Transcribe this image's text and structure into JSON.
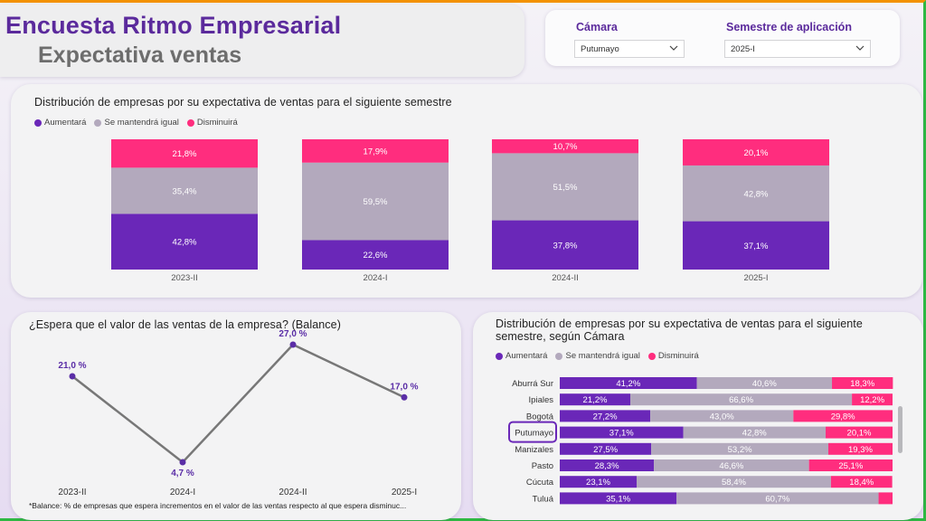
{
  "header": {
    "title": "Encuesta Ritmo Empresarial",
    "subtitle": "Expectativa ventas"
  },
  "filters": {
    "camara_label": "Cámara",
    "camara_value": "Putumayo",
    "semestre_label": "Semestre de aplicación",
    "semestre_value": "2025-I"
  },
  "colors": {
    "aumentara": "#6a27b8",
    "igual": "#b3a9bd",
    "disminuira": "#ff2d7e",
    "line": "#777777",
    "point": "#5a2da6"
  },
  "legend": {
    "aumentara": "Aumentará",
    "igual": "Se mantendrá igual",
    "disminuira": "Disminuirá"
  },
  "top_chart": {
    "title": "Distribución de empresas por su expectativa de ventas para el siguiente semestre"
  },
  "line_chart": {
    "title": "¿Espera que el valor de las ventas de la empresa? (Balance)",
    "footnote": "*Balance: % de empresas que espera incrementos en el valor de las ventas respecto al que espera disminuc..."
  },
  "bars_chart": {
    "title_line1": "Distribución de empresas por su expectativa de ventas para el siguiente",
    "title_line2": "semestre, según Cámara",
    "highlight": "Putumayo"
  },
  "chart_data": [
    {
      "type": "bar",
      "stacked": true,
      "categories": [
        "2023-II",
        "2024-I",
        "2024-II",
        "2025-I"
      ],
      "series": [
        {
          "name": "Aumentará",
          "values": [
            42.8,
            22.6,
            37.8,
            37.1
          ],
          "labels": [
            "42,8%",
            "22,6%",
            "37,8%",
            "37,1%"
          ]
        },
        {
          "name": "Se mantendrá igual",
          "values": [
            35.4,
            59.5,
            51.5,
            42.8
          ],
          "labels": [
            "35,4%",
            "59,5%",
            "51,5%",
            "42,8%"
          ]
        },
        {
          "name": "Disminuirá",
          "values": [
            21.8,
            17.9,
            10.7,
            20.1
          ],
          "labels": [
            "21,8%",
            "17,9%",
            "10,7%",
            "20,1%"
          ]
        }
      ]
    },
    {
      "type": "line",
      "x": [
        "2023-II",
        "2024-I",
        "2024-II",
        "2025-I"
      ],
      "y": [
        21.0,
        4.7,
        27.0,
        17.0
      ],
      "labels": [
        "21,0 %",
        "4,7 %",
        "27,0 %",
        "17,0 %"
      ]
    },
    {
      "type": "bar",
      "orientation": "horizontal",
      "stacked": true,
      "categories": [
        "Aburrá Sur",
        "Ipiales",
        "Bogotá",
        "Putumayo",
        "Manizales",
        "Pasto",
        "Cúcuta",
        "Tuluá"
      ],
      "series": [
        {
          "name": "Aumentará",
          "values": [
            41.2,
            21.2,
            27.2,
            37.1,
            27.5,
            28.3,
            23.1,
            35.1
          ],
          "labels": [
            "41,2%",
            "21,2%",
            "27,2%",
            "37,1%",
            "27,5%",
            "28,3%",
            "23,1%",
            "35,1%"
          ]
        },
        {
          "name": "Se mantendrá igual",
          "values": [
            40.6,
            66.6,
            43.0,
            42.8,
            53.2,
            46.6,
            58.4,
            60.7
          ],
          "labels": [
            "40,6%",
            "66,6%",
            "43,0%",
            "42,8%",
            "53,2%",
            "46,6%",
            "58,4%",
            "60,7%"
          ]
        },
        {
          "name": "Disminuirá",
          "values": [
            18.3,
            12.2,
            29.8,
            20.1,
            19.3,
            25.1,
            18.4,
            4.2
          ],
          "labels": [
            "18,3%",
            "12,2%",
            "29,8%",
            "20,1%",
            "19,3%",
            "25,1%",
            "18,4%",
            ""
          ]
        }
      ]
    }
  ]
}
